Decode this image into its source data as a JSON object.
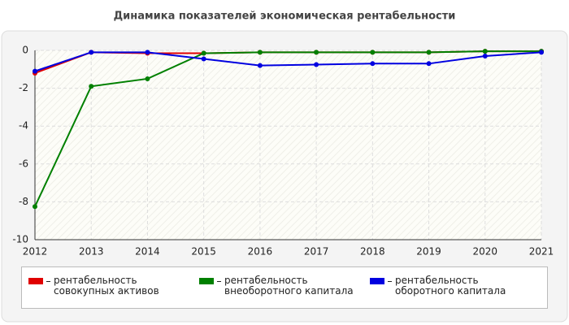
{
  "chart_data": {
    "type": "line",
    "title": "Динамика показателей экономическая рентабельности",
    "categories": [
      "2012",
      "2013",
      "2014",
      "2015",
      "2016",
      "2017",
      "2018",
      "2019",
      "2020",
      "2021"
    ],
    "series": [
      {
        "name": "рентабельность совокупных активов",
        "color": "#e00000",
        "values": [
          -1.2,
          -0.1,
          -0.15,
          -0.15,
          -0.1,
          -0.1,
          -0.1,
          -0.1,
          -0.05,
          -0.05
        ]
      },
      {
        "name": "рентабельность внеоборотного капитала",
        "color": "#008000",
        "values": [
          -8.25,
          -1.9,
          -1.5,
          -0.15,
          -0.1,
          -0.1,
          -0.1,
          -0.1,
          -0.05,
          -0.05
        ]
      },
      {
        "name": "рентабельность оборотного капитала",
        "color": "#0000e0",
        "values": [
          -1.1,
          -0.1,
          -0.1,
          -0.45,
          -0.8,
          -0.75,
          -0.7,
          -0.7,
          -0.3,
          -0.1
        ]
      }
    ],
    "ylim": [
      -10,
      0
    ],
    "yticks": [
      0,
      -2,
      -4,
      -6,
      -8,
      -10
    ],
    "grid": true
  }
}
